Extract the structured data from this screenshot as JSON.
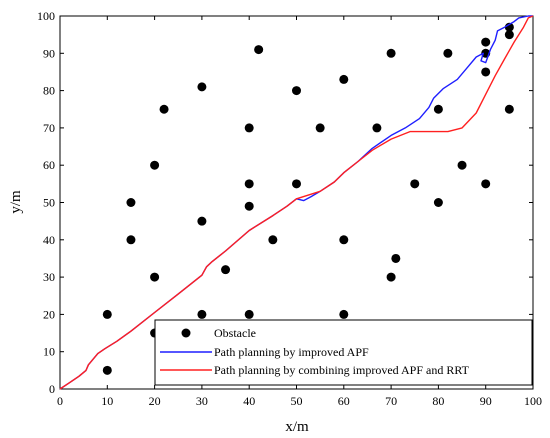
{
  "chart_data": {
    "type": "scatter",
    "xlabel": "x/m",
    "ylabel": "y/m",
    "xlim": [
      0,
      100
    ],
    "ylim": [
      0,
      100
    ],
    "xticks": [
      "0",
      "10",
      "20",
      "30",
      "40",
      "50",
      "60",
      "70",
      "80",
      "90",
      "100"
    ],
    "yticks": [
      "0",
      "10",
      "20",
      "30",
      "40",
      "50",
      "60",
      "70",
      "80",
      "90",
      "100"
    ],
    "grid": false,
    "legend_position": "bottom-right",
    "series": [
      {
        "name": "Obstacle",
        "kind": "scatter",
        "color": "#000000",
        "points": [
          [
            10,
            5
          ],
          [
            10,
            20
          ],
          [
            15,
            40
          ],
          [
            15,
            50
          ],
          [
            20,
            15
          ],
          [
            20,
            30
          ],
          [
            20,
            60
          ],
          [
            22,
            75
          ],
          [
            30,
            20
          ],
          [
            30,
            45
          ],
          [
            30,
            81
          ],
          [
            35,
            32
          ],
          [
            40,
            20
          ],
          [
            40,
            49
          ],
          [
            40,
            55
          ],
          [
            40,
            70
          ],
          [
            42,
            91
          ],
          [
            45,
            40
          ],
          [
            50,
            55
          ],
          [
            50,
            80
          ],
          [
            55,
            70
          ],
          [
            60,
            20
          ],
          [
            60,
            40
          ],
          [
            60,
            83
          ],
          [
            67,
            70
          ],
          [
            70,
            30
          ],
          [
            70,
            90
          ],
          [
            71,
            35
          ],
          [
            75,
            55
          ],
          [
            80,
            50
          ],
          [
            80,
            75
          ],
          [
            82,
            90
          ],
          [
            85,
            60
          ],
          [
            90,
            55
          ],
          [
            90,
            85
          ],
          [
            90,
            90
          ],
          [
            90,
            93
          ],
          [
            95,
            75
          ],
          [
            95,
            95
          ],
          [
            95,
            97
          ]
        ]
      },
      {
        "name": "Path planning by improved APF",
        "kind": "line",
        "color": "#1f1fff",
        "points": [
          [
            0,
            0
          ],
          [
            2,
            1.7
          ],
          [
            4,
            3.4
          ],
          [
            5.5,
            5
          ],
          [
            6,
            6.5
          ],
          [
            7,
            8
          ],
          [
            8,
            9.5
          ],
          [
            9.5,
            10.8
          ],
          [
            12,
            12.8
          ],
          [
            15,
            15.5
          ],
          [
            20,
            20.5
          ],
          [
            25,
            25.5
          ],
          [
            30,
            30.5
          ],
          [
            31,
            32.8
          ],
          [
            32,
            34
          ],
          [
            35,
            37
          ],
          [
            40,
            42.5
          ],
          [
            45,
            46.5
          ],
          [
            48,
            49
          ],
          [
            50,
            51
          ],
          [
            51.5,
            50.5
          ],
          [
            53,
            51.5
          ],
          [
            55,
            53
          ],
          [
            58,
            55.5
          ],
          [
            60,
            58
          ],
          [
            63,
            61
          ],
          [
            66,
            64.5
          ],
          [
            70,
            68
          ],
          [
            73,
            70
          ],
          [
            76,
            72.5
          ],
          [
            78,
            75.5
          ],
          [
            79,
            78
          ],
          [
            81,
            80.5
          ],
          [
            84,
            83
          ],
          [
            86,
            86
          ],
          [
            88,
            89
          ],
          [
            89.5,
            90
          ],
          [
            89,
            88
          ],
          [
            90,
            87.5
          ],
          [
            91,
            91
          ],
          [
            92,
            93.5
          ],
          [
            92.5,
            96
          ],
          [
            94,
            97
          ],
          [
            96,
            98.5
          ],
          [
            97,
            99.5
          ],
          [
            99,
            100
          ],
          [
            100,
            100
          ]
        ]
      },
      {
        "name": "Path planning by combining improved APF and RRT",
        "kind": "line",
        "color": "#ff2020",
        "points": [
          [
            0,
            0
          ],
          [
            2,
            1.7
          ],
          [
            4,
            3.4
          ],
          [
            5.5,
            5
          ],
          [
            6,
            6.5
          ],
          [
            7,
            8
          ],
          [
            8,
            9.5
          ],
          [
            9.5,
            10.8
          ],
          [
            12,
            12.8
          ],
          [
            15,
            15.5
          ],
          [
            20,
            20.5
          ],
          [
            25,
            25.5
          ],
          [
            30,
            30.5
          ],
          [
            31,
            32.8
          ],
          [
            32,
            34
          ],
          [
            35,
            37
          ],
          [
            40,
            42.5
          ],
          [
            45,
            46.5
          ],
          [
            48,
            49
          ],
          [
            50,
            51
          ],
          [
            52,
            51.8
          ],
          [
            55,
            53
          ],
          [
            58,
            55.5
          ],
          [
            60,
            58
          ],
          [
            63,
            61
          ],
          [
            66,
            64
          ],
          [
            70,
            67
          ],
          [
            74,
            69
          ],
          [
            78,
            69
          ],
          [
            82,
            69
          ],
          [
            85,
            70
          ],
          [
            88,
            74
          ],
          [
            90,
            79
          ],
          [
            92,
            84
          ],
          [
            94,
            88.5
          ],
          [
            96,
            93
          ],
          [
            98,
            97
          ],
          [
            99,
            99.5
          ],
          [
            100,
            100
          ]
        ]
      }
    ]
  }
}
